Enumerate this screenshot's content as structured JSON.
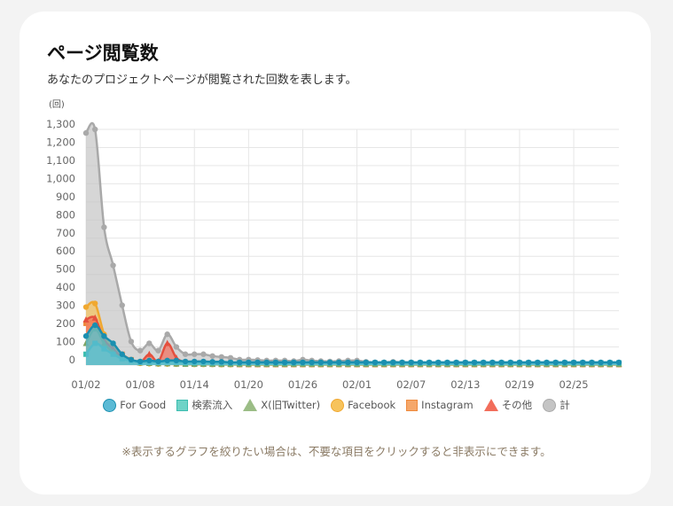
{
  "title": "ページ閲覧数",
  "subtitle": "あなたのプロジェクトページが閲覧された回数を表します。",
  "note": "※表示するグラフを絞りたい場合は、不要な項目をクリックすると非表示にできます。",
  "chart_data": {
    "type": "area",
    "unit_label": "(回)",
    "y_ticks": [
      0,
      100,
      200,
      300,
      400,
      500,
      600,
      700,
      800,
      900,
      1000,
      1100,
      1200,
      1300
    ],
    "y_tick_labels": [
      "0",
      "100",
      "200",
      "300",
      "400",
      "500",
      "600",
      "700",
      "800",
      "900",
      "1,000",
      "1,100",
      "1,200",
      "1,300"
    ],
    "ylim": [
      0,
      1300
    ],
    "x_tick_labels": [
      "01/02",
      "01/08",
      "01/14",
      "01/20",
      "01/26",
      "02/01",
      "02/07",
      "02/13",
      "02/19",
      "02/25"
    ],
    "x_dates": [
      "01/02",
      "01/03",
      "01/04",
      "01/05",
      "01/06",
      "01/07",
      "01/08",
      "01/09",
      "01/10",
      "01/11",
      "01/12",
      "01/13",
      "01/14",
      "01/15",
      "01/16",
      "01/17",
      "01/18",
      "01/19",
      "01/20",
      "01/21",
      "01/22",
      "01/23",
      "01/24",
      "01/25",
      "01/26",
      "01/27",
      "01/28",
      "01/29",
      "01/30",
      "01/31",
      "02/01",
      "02/02",
      "02/03",
      "02/04",
      "02/05",
      "02/06",
      "02/07",
      "02/08",
      "02/09",
      "02/10",
      "02/11",
      "02/12",
      "02/13",
      "02/14",
      "02/15",
      "02/16",
      "02/17",
      "02/18",
      "02/19",
      "02/20",
      "02/21",
      "02/22",
      "02/23",
      "02/24",
      "02/25",
      "02/26",
      "02/27",
      "02/28",
      "02/29",
      "03/01"
    ],
    "grid": true,
    "legend_position": "bottom",
    "series": [
      {
        "name": "計",
        "color": "#c4c4c4",
        "line": "#a9a9a9",
        "shape": "circle",
        "values": [
          1280,
          1300,
          760,
          550,
          330,
          130,
          80,
          120,
          80,
          170,
          100,
          60,
          60,
          60,
          50,
          45,
          40,
          30,
          30,
          28,
          25,
          25,
          25,
          22,
          30,
          25,
          22,
          20,
          22,
          25,
          25,
          18,
          15,
          15,
          18,
          15,
          15,
          12,
          12,
          12,
          12,
          10,
          10,
          10,
          10,
          10,
          10,
          10,
          10,
          10,
          10,
          12,
          10,
          10,
          10,
          10,
          10,
          10,
          10,
          10
        ]
      },
      {
        "name": "Instagram",
        "color": "#f5a76a",
        "line": "#ef8a3d",
        "shape": "rect",
        "values": [
          230,
          240,
          150,
          100,
          60,
          30,
          15,
          12,
          10,
          10,
          8,
          6,
          5,
          5,
          5,
          4,
          4,
          3,
          3,
          3,
          3,
          3,
          3,
          3,
          3,
          3,
          3,
          3,
          3,
          3,
          3,
          3,
          3,
          3,
          3,
          3,
          3,
          3,
          3,
          3,
          3,
          3,
          3,
          3,
          3,
          3,
          3,
          3,
          3,
          3,
          3,
          3,
          3,
          3,
          3,
          3,
          3,
          3,
          3,
          3
        ]
      },
      {
        "name": "Facebook",
        "color": "#f7c35c",
        "line": "#f0a830",
        "shape": "circle",
        "values": [
          320,
          340,
          170,
          90,
          40,
          20,
          10,
          8,
          6,
          6,
          5,
          5,
          4,
          4,
          4,
          3,
          3,
          3,
          3,
          3,
          3,
          3,
          3,
          3,
          3,
          3,
          3,
          3,
          3,
          3,
          3,
          3,
          3,
          3,
          3,
          3,
          3,
          3,
          3,
          3,
          3,
          3,
          3,
          3,
          3,
          3,
          3,
          3,
          3,
          3,
          3,
          3,
          3,
          3,
          3,
          3,
          3,
          3,
          3,
          3
        ]
      },
      {
        "name": "その他",
        "color": "#f26d5b",
        "line": "#e5503e",
        "shape": "tri",
        "values": [
          250,
          260,
          140,
          90,
          40,
          20,
          12,
          60,
          20,
          120,
          40,
          15,
          10,
          8,
          6,
          5,
          5,
          4,
          4,
          4,
          4,
          4,
          4,
          4,
          4,
          4,
          4,
          4,
          4,
          4,
          4,
          4,
          4,
          4,
          4,
          4,
          4,
          4,
          4,
          4,
          4,
          4,
          4,
          4,
          4,
          4,
          4,
          4,
          4,
          4,
          4,
          4,
          4,
          4,
          4,
          4,
          4,
          4,
          4,
          4
        ]
      },
      {
        "name": "X(旧Twitter)",
        "color": "#9bbd86",
        "line": "#7da466",
        "shape": "tri",
        "values": [
          120,
          200,
          120,
          70,
          35,
          20,
          12,
          10,
          8,
          8,
          6,
          5,
          5,
          5,
          4,
          4,
          4,
          4,
          4,
          4,
          4,
          4,
          4,
          4,
          4,
          4,
          4,
          4,
          4,
          4,
          4,
          4,
          4,
          4,
          4,
          4,
          4,
          4,
          4,
          4,
          4,
          4,
          4,
          4,
          4,
          4,
          4,
          4,
          4,
          4,
          4,
          4,
          4,
          4,
          4,
          4,
          4,
          4,
          4,
          4
        ]
      },
      {
        "name": "検索流入",
        "color": "#6fd3c7",
        "line": "#3dbdb0",
        "shape": "rect",
        "values": [
          60,
          120,
          90,
          60,
          35,
          25,
          15,
          15,
          15,
          20,
          15,
          12,
          12,
          12,
          12,
          12,
          12,
          12,
          12,
          12,
          12,
          12,
          12,
          12,
          12,
          12,
          12,
          12,
          12,
          12,
          12,
          12,
          12,
          12,
          12,
          12,
          12,
          12,
          12,
          12,
          12,
          12,
          12,
          12,
          12,
          12,
          12,
          12,
          12,
          12,
          12,
          12,
          12,
          12,
          12,
          12,
          12,
          12,
          12,
          12
        ]
      },
      {
        "name": "For Good",
        "color": "#5bbad5",
        "line": "#1a8fb0",
        "shape": "circle",
        "values": [
          160,
          220,
          160,
          120,
          60,
          30,
          20,
          25,
          20,
          25,
          25,
          20,
          20,
          20,
          18,
          18,
          15,
          15,
          15,
          15,
          15,
          15,
          15,
          15,
          15,
          15,
          15,
          15,
          15,
          15,
          15,
          15,
          15,
          15,
          15,
          15,
          15,
          15,
          15,
          15,
          15,
          15,
          15,
          15,
          15,
          15,
          15,
          15,
          15,
          15,
          15,
          15,
          15,
          15,
          15,
          15,
          15,
          15,
          15,
          15
        ]
      }
    ],
    "legend_order": [
      "For Good",
      "検索流入",
      "X(旧Twitter)",
      "Facebook",
      "Instagram",
      "その他",
      "計"
    ]
  }
}
